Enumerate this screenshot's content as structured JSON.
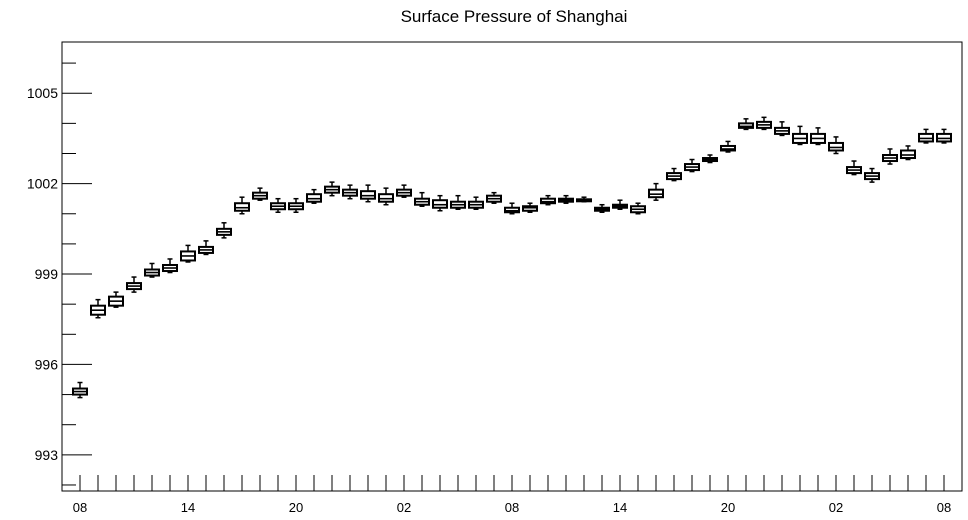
{
  "chart_data": {
    "type": "box",
    "title": "Surface Pressure of Shanghai",
    "xlabel": "",
    "ylabel": "",
    "ylim": [
      991.8,
      1006.7
    ],
    "y_ticks": [
      993,
      996,
      999,
      1002,
      1005
    ],
    "y_tick_labels": [
      "993",
      "996",
      "999",
      "1002",
      "1005"
    ],
    "x_slot_count": 49,
    "x_tick_labels": [
      {
        "slot": 0,
        "label": "08"
      },
      {
        "slot": 6,
        "label": "14"
      },
      {
        "slot": 12,
        "label": "20"
      },
      {
        "slot": 18,
        "label": "02"
      },
      {
        "slot": 24,
        "label": "08"
      },
      {
        "slot": 30,
        "label": "14"
      },
      {
        "slot": 36,
        "label": "20"
      },
      {
        "slot": 42,
        "label": "02"
      },
      {
        "slot": 48,
        "label": "08"
      }
    ],
    "grid": false,
    "boxes": [
      {
        "slot": 0,
        "median": 995.1,
        "q1": 995.0,
        "q3": 995.2,
        "whisker_low": 994.9,
        "whisker_high": 995.4
      },
      {
        "slot": 1,
        "median": 997.8,
        "q1": 997.65,
        "q3": 997.95,
        "whisker_low": 997.55,
        "whisker_high": 998.15
      },
      {
        "slot": 2,
        "median": 998.1,
        "q1": 997.95,
        "q3": 998.25,
        "whisker_low": 997.9,
        "whisker_high": 998.4
      },
      {
        "slot": 3,
        "median": 998.6,
        "q1": 998.5,
        "q3": 998.7,
        "whisker_low": 998.4,
        "whisker_high": 998.9
      },
      {
        "slot": 4,
        "median": 999.05,
        "q1": 998.95,
        "q3": 999.15,
        "whisker_low": 998.9,
        "whisker_high": 999.35
      },
      {
        "slot": 5,
        "median": 999.2,
        "q1": 999.1,
        "q3": 999.3,
        "whisker_low": 999.05,
        "whisker_high": 999.5
      },
      {
        "slot": 6,
        "median": 999.6,
        "q1": 999.45,
        "q3": 999.75,
        "whisker_low": 999.4,
        "whisker_high": 999.95
      },
      {
        "slot": 7,
        "median": 999.8,
        "q1": 999.7,
        "q3": 999.9,
        "whisker_low": 999.65,
        "whisker_high": 1000.1
      },
      {
        "slot": 8,
        "median": 1000.4,
        "q1": 1000.3,
        "q3": 1000.5,
        "whisker_low": 1000.2,
        "whisker_high": 1000.7
      },
      {
        "slot": 9,
        "median": 1001.2,
        "q1": 1001.1,
        "q3": 1001.35,
        "whisker_low": 1001.0,
        "whisker_high": 1001.55
      },
      {
        "slot": 10,
        "median": 1001.6,
        "q1": 1001.5,
        "q3": 1001.7,
        "whisker_low": 1001.45,
        "whisker_high": 1001.85
      },
      {
        "slot": 11,
        "median": 1001.25,
        "q1": 1001.15,
        "q3": 1001.35,
        "whisker_low": 1001.05,
        "whisker_high": 1001.5
      },
      {
        "slot": 12,
        "median": 1001.25,
        "q1": 1001.15,
        "q3": 1001.35,
        "whisker_low": 1001.05,
        "whisker_high": 1001.5
      },
      {
        "slot": 13,
        "median": 1001.5,
        "q1": 1001.4,
        "q3": 1001.65,
        "whisker_low": 1001.35,
        "whisker_high": 1001.8
      },
      {
        "slot": 14,
        "median": 1001.8,
        "q1": 1001.7,
        "q3": 1001.9,
        "whisker_low": 1001.6,
        "whisker_high": 1002.05
      },
      {
        "slot": 15,
        "median": 1001.7,
        "q1": 1001.6,
        "q3": 1001.8,
        "whisker_low": 1001.5,
        "whisker_high": 1001.95
      },
      {
        "slot": 16,
        "median": 1001.6,
        "q1": 1001.5,
        "q3": 1001.75,
        "whisker_low": 1001.4,
        "whisker_high": 1001.95
      },
      {
        "slot": 17,
        "median": 1001.5,
        "q1": 1001.4,
        "q3": 1001.65,
        "whisker_low": 1001.3,
        "whisker_high": 1001.85
      },
      {
        "slot": 18,
        "median": 1001.7,
        "q1": 1001.6,
        "q3": 1001.8,
        "whisker_low": 1001.55,
        "whisker_high": 1001.95
      },
      {
        "slot": 19,
        "median": 1001.4,
        "q1": 1001.3,
        "q3": 1001.5,
        "whisker_low": 1001.25,
        "whisker_high": 1001.7
      },
      {
        "slot": 20,
        "median": 1001.3,
        "q1": 1001.2,
        "q3": 1001.45,
        "whisker_low": 1001.1,
        "whisker_high": 1001.6
      },
      {
        "slot": 21,
        "median": 1001.3,
        "q1": 1001.2,
        "q3": 1001.4,
        "whisker_low": 1001.15,
        "whisker_high": 1001.6
      },
      {
        "slot": 22,
        "median": 1001.3,
        "q1": 1001.2,
        "q3": 1001.4,
        "whisker_low": 1001.15,
        "whisker_high": 1001.55
      },
      {
        "slot": 23,
        "median": 1001.5,
        "q1": 1001.4,
        "q3": 1001.6,
        "whisker_low": 1001.35,
        "whisker_high": 1001.7
      },
      {
        "slot": 24,
        "median": 1001.1,
        "q1": 1001.05,
        "q3": 1001.2,
        "whisker_low": 1001.0,
        "whisker_high": 1001.35
      },
      {
        "slot": 25,
        "median": 1001.2,
        "q1": 1001.1,
        "q3": 1001.25,
        "whisker_low": 1001.05,
        "whisker_high": 1001.35
      },
      {
        "slot": 26,
        "median": 1001.4,
        "q1": 1001.35,
        "q3": 1001.5,
        "whisker_low": 1001.3,
        "whisker_high": 1001.6
      },
      {
        "slot": 27,
        "median": 1001.45,
        "q1": 1001.4,
        "q3": 1001.5,
        "whisker_low": 1001.35,
        "whisker_high": 1001.6
      },
      {
        "slot": 28,
        "median": 1001.45,
        "q1": 1001.42,
        "q3": 1001.48,
        "whisker_low": 1001.4,
        "whisker_high": 1001.55
      },
      {
        "slot": 29,
        "median": 1001.15,
        "q1": 1001.1,
        "q3": 1001.2,
        "whisker_low": 1001.05,
        "whisker_high": 1001.3
      },
      {
        "slot": 30,
        "median": 1001.25,
        "q1": 1001.2,
        "q3": 1001.3,
        "whisker_low": 1001.15,
        "whisker_high": 1001.45
      },
      {
        "slot": 31,
        "median": 1001.15,
        "q1": 1001.05,
        "q3": 1001.25,
        "whisker_low": 1001.0,
        "whisker_high": 1001.35
      },
      {
        "slot": 32,
        "median": 1001.65,
        "q1": 1001.55,
        "q3": 1001.8,
        "whisker_low": 1001.45,
        "whisker_high": 1002.0
      },
      {
        "slot": 33,
        "median": 1002.25,
        "q1": 1002.15,
        "q3": 1002.35,
        "whisker_low": 1002.1,
        "whisker_high": 1002.5
      },
      {
        "slot": 34,
        "median": 1002.55,
        "q1": 1002.45,
        "q3": 1002.65,
        "whisker_low": 1002.4,
        "whisker_high": 1002.8
      },
      {
        "slot": 35,
        "median": 1002.8,
        "q1": 1002.75,
        "q3": 1002.85,
        "whisker_low": 1002.7,
        "whisker_high": 1002.95
      },
      {
        "slot": 36,
        "median": 1003.15,
        "q1": 1003.1,
        "q3": 1003.25,
        "whisker_low": 1003.05,
        "whisker_high": 1003.4
      },
      {
        "slot": 37,
        "median": 1003.9,
        "q1": 1003.85,
        "q3": 1004.0,
        "whisker_low": 1003.8,
        "whisker_high": 1004.15
      },
      {
        "slot": 38,
        "median": 1003.95,
        "q1": 1003.85,
        "q3": 1004.05,
        "whisker_low": 1003.8,
        "whisker_high": 1004.2
      },
      {
        "slot": 39,
        "median": 1003.75,
        "q1": 1003.65,
        "q3": 1003.85,
        "whisker_low": 1003.6,
        "whisker_high": 1004.05
      },
      {
        "slot": 40,
        "median": 1003.5,
        "q1": 1003.35,
        "q3": 1003.65,
        "whisker_low": 1003.3,
        "whisker_high": 1003.9
      },
      {
        "slot": 41,
        "median": 1003.5,
        "q1": 1003.35,
        "q3": 1003.65,
        "whisker_low": 1003.3,
        "whisker_high": 1003.85
      },
      {
        "slot": 42,
        "median": 1003.2,
        "q1": 1003.1,
        "q3": 1003.35,
        "whisker_low": 1003.0,
        "whisker_high": 1003.55
      },
      {
        "slot": 43,
        "median": 1002.45,
        "q1": 1002.35,
        "q3": 1002.55,
        "whisker_low": 1002.3,
        "whisker_high": 1002.75
      },
      {
        "slot": 44,
        "median": 1002.25,
        "q1": 1002.15,
        "q3": 1002.35,
        "whisker_low": 1002.05,
        "whisker_high": 1002.5
      },
      {
        "slot": 45,
        "median": 1002.85,
        "q1": 1002.75,
        "q3": 1002.95,
        "whisker_low": 1002.65,
        "whisker_high": 1003.15
      },
      {
        "slot": 46,
        "median": 1002.95,
        "q1": 1002.85,
        "q3": 1003.1,
        "whisker_low": 1002.8,
        "whisker_high": 1003.25
      },
      {
        "slot": 47,
        "median": 1003.5,
        "q1": 1003.4,
        "q3": 1003.65,
        "whisker_low": 1003.35,
        "whisker_high": 1003.8
      },
      {
        "slot": 48,
        "median": 1003.5,
        "q1": 1003.4,
        "q3": 1003.65,
        "whisker_low": 1003.35,
        "whisker_high": 1003.8
      }
    ]
  }
}
